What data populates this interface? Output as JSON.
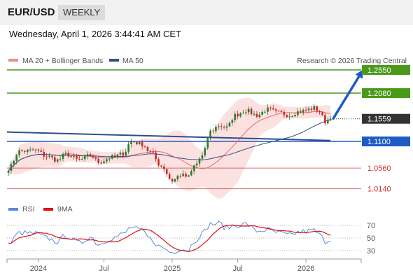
{
  "header": {
    "pair": "EUR/USD",
    "period": "WEEKLY"
  },
  "datetime": "Wednesday, April 1, 2026 3:44:41 AM CET",
  "legend": {
    "item1": "MA 20 + Bollinger Bands",
    "item2": "MA 50",
    "source": "Research © 2026 Trading Central"
  },
  "colors": {
    "support": "#1f5bc4",
    "resistance": "#4a9a1a",
    "minor": "#cc3333",
    "ma50": "#2e4f86",
    "ma20": "#e86a6a",
    "band": "#fbdada",
    "up": "#2c7a2c",
    "down": "#c82a2a",
    "rsi": "#5b8ad8",
    "rsi_ma": "#dd1111"
  },
  "chart_data": {
    "type": "candlestick",
    "ylim": [
      1.005,
      1.262
    ],
    "levels": [
      {
        "value": 1.255,
        "label": "1.2550",
        "kind": "resistance"
      },
      {
        "value": 1.208,
        "label": "1.2080",
        "kind": "resistance"
      },
      {
        "value": 1.1559,
        "label": "1.1559",
        "kind": "current"
      },
      {
        "value": 1.11,
        "label": "1.1100",
        "kind": "support"
      },
      {
        "value": 1.056,
        "label": "1.0560",
        "kind": "minor"
      },
      {
        "value": 1.014,
        "label": "1.0140",
        "kind": "minor"
      }
    ],
    "trendline": {
      "start": [
        0,
        1.129
      ],
      "end": [
        118,
        1.1118
      ]
    },
    "forecast": {
      "start": [
        119,
        1.1565
      ],
      "end": [
        130,
        1.256
      ]
    },
    "x_ticks": [
      {
        "index": 11,
        "label": "2024"
      },
      {
        "index": 35,
        "label": "Jul"
      },
      {
        "index": 60,
        "label": "2025"
      },
      {
        "index": 84,
        "label": "Jul"
      },
      {
        "index": 109,
        "label": "2026"
      }
    ],
    "anchors": [
      [
        0,
        1.055
      ],
      [
        4,
        1.09
      ],
      [
        10,
        1.092
      ],
      [
        14,
        1.08
      ],
      [
        18,
        1.072
      ],
      [
        21,
        1.084
      ],
      [
        26,
        1.072
      ],
      [
        30,
        1.082
      ],
      [
        33,
        1.068
      ],
      [
        38,
        1.078
      ],
      [
        42,
        1.085
      ],
      [
        45,
        1.11
      ],
      [
        49,
        1.104
      ],
      [
        52,
        1.088
      ],
      [
        56,
        1.06
      ],
      [
        60,
        1.03
      ],
      [
        63,
        1.042
      ],
      [
        66,
        1.038
      ],
      [
        68,
        1.06
      ],
      [
        71,
        1.08
      ],
      [
        74,
        1.13
      ],
      [
        77,
        1.142
      ],
      [
        80,
        1.138
      ],
      [
        83,
        1.163
      ],
      [
        87,
        1.173
      ],
      [
        91,
        1.163
      ],
      [
        95,
        1.175
      ],
      [
        99,
        1.168
      ],
      [
        103,
        1.163
      ],
      [
        106,
        1.17
      ],
      [
        108,
        1.172
      ],
      [
        110,
        1.175
      ],
      [
        112,
        1.178
      ],
      [
        114,
        1.17
      ],
      [
        116,
        1.15
      ],
      [
        118,
        1.1559
      ]
    ],
    "rsi": {
      "ylim": [
        20,
        80
      ],
      "ticks": [
        70,
        50,
        30
      ],
      "anchors": [
        [
          0,
          40
        ],
        [
          4,
          58
        ],
        [
          10,
          57
        ],
        [
          14,
          50
        ],
        [
          18,
          44
        ],
        [
          21,
          54
        ],
        [
          26,
          42
        ],
        [
          30,
          52
        ],
        [
          33,
          40
        ],
        [
          38,
          50
        ],
        [
          42,
          56
        ],
        [
          45,
          67
        ],
        [
          49,
          61
        ],
        [
          52,
          48
        ],
        [
          56,
          35
        ],
        [
          60,
          27
        ],
        [
          63,
          33
        ],
        [
          66,
          31
        ],
        [
          68,
          45
        ],
        [
          71,
          57
        ],
        [
          74,
          72
        ],
        [
          77,
          73
        ],
        [
          80,
          66
        ],
        [
          83,
          70
        ],
        [
          87,
          72
        ],
        [
          91,
          61
        ],
        [
          95,
          63
        ],
        [
          99,
          58
        ],
        [
          103,
          54
        ],
        [
          106,
          59
        ],
        [
          108,
          60
        ],
        [
          110,
          61
        ],
        [
          112,
          62
        ],
        [
          114,
          55
        ],
        [
          116,
          45
        ],
        [
          118,
          47
        ]
      ]
    }
  },
  "rsi_legend": {
    "item1": "RSI",
    "item2": "9MA"
  }
}
